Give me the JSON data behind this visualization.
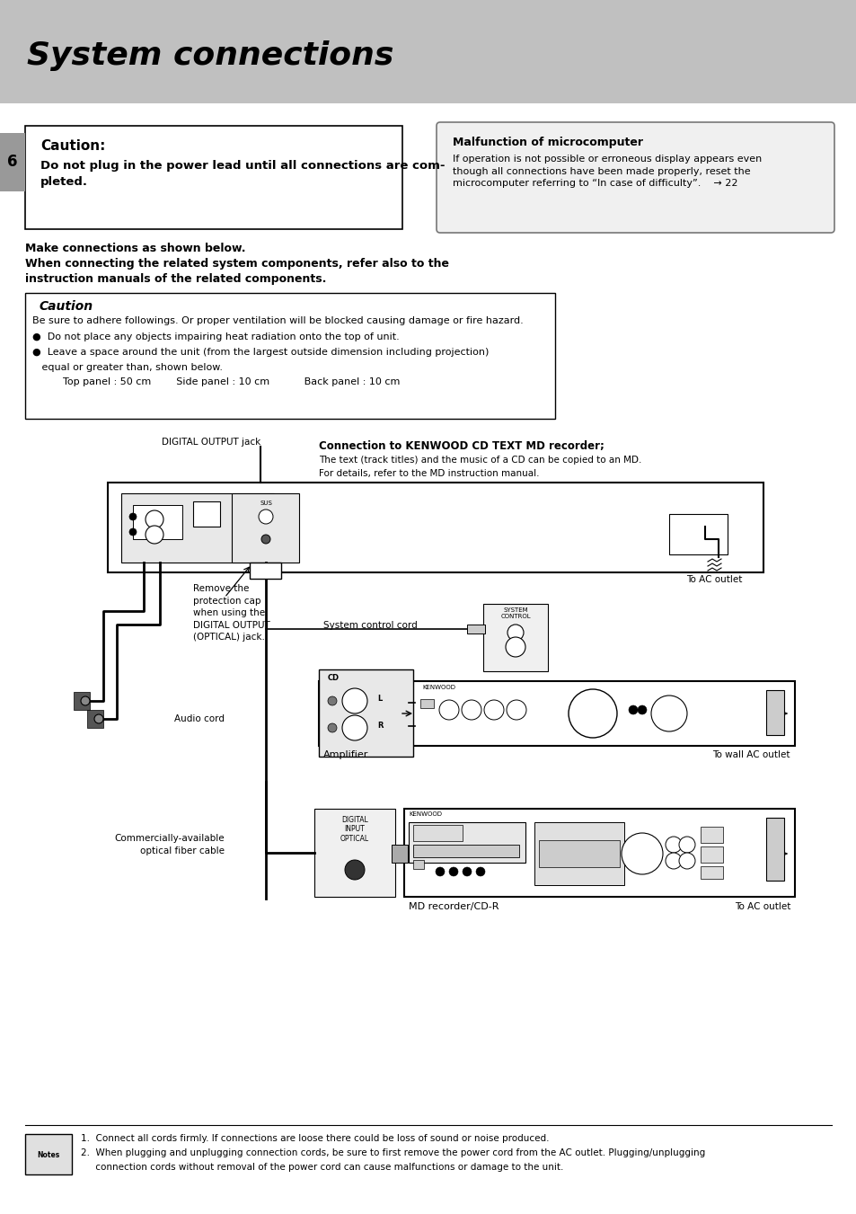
{
  "bg_color": "#ffffff",
  "header_bg": "#c0c0c0",
  "page_width": 9.54,
  "page_height": 13.51,
  "dpi": 100,
  "title": "System connections",
  "page_number": "6",
  "caution1_title": "Caution:",
  "caution1_body": "Do not plug in the power lead until all connections are com-\npleted.",
  "malfunction_title": "Malfunction of microcomputer",
  "malfunction_body": "If operation is not possible or erroneous display appears even\nthough all connections have been made properly, reset the\nmicrocomputer referring to “In case of difficulty”.    → 22",
  "instr1": "Make connections as shown below.",
  "instr2": "When connecting the related system components, refer also to the",
  "instr3": "instruction manuals of the related components.",
  "caution2_title": "Caution",
  "caution2_body1": "Be sure to adhere followings. Or proper ventilation will be blocked causing damage or fire hazard.",
  "caution2_b1": "●  Do not place any objects impairing heat radiation onto the top of unit.",
  "caution2_b2": "●  Leave a space around the unit (from the largest outside dimension including projection)",
  "caution2_b3": "   equal or greater than, shown below.",
  "caution2_meas": "Top panel : 50 cm        Side panel : 10 cm           Back panel : 10 cm",
  "lbl_digital_jack": "DIGITAL OUTPUT jack",
  "lbl_connection_title": "Connection to KENWOOD CD TEXT MD recorder;",
  "lbl_connection_b1": "The text (track titles) and the music of a CD can be copied to an MD.",
  "lbl_connection_b2": "For details, refer to the MD instruction manual.",
  "lbl_remove_cap": "Remove the\nprotection cap\nwhen using the\nDIGITAL OUTPUT\n(OPTICAL) jack.",
  "lbl_system_cord": "System control cord",
  "lbl_audio_cord": "Audio cord",
  "lbl_amplifier": "Amplifier",
  "lbl_to_wall": "To wall AC outlet",
  "lbl_to_ac1": "To AC outlet",
  "lbl_commercially": "Commercially-available\noptical fiber cable",
  "lbl_md": "MD recorder/CD-R",
  "lbl_to_ac2": "To AC outlet",
  "note1": "1.  Connect all cords firmly. If connections are loose there could be loss of sound or noise produced.",
  "note2": "2.  When plugging and unplugging connection cords, be sure to first remove the power cord from the AC outlet. Plugging/unplugging",
  "note3": "     connection cords without removal of the power cord can cause malfunctions or damage to the unit."
}
